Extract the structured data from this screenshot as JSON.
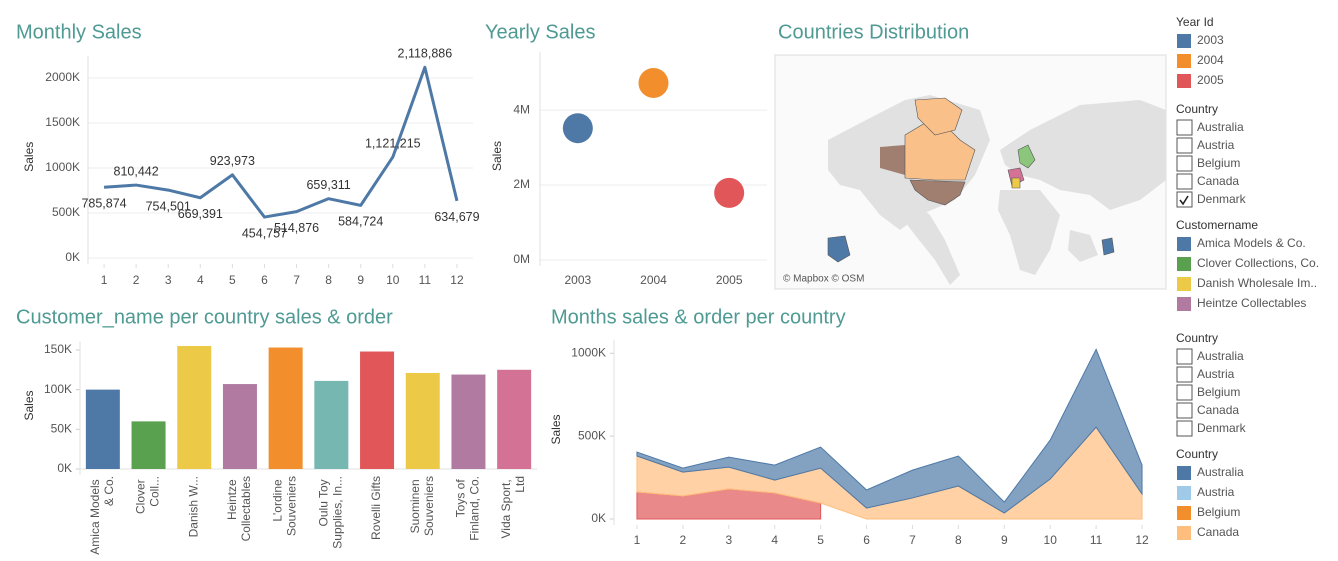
{
  "chart_data": [
    {
      "type": "line",
      "title": "Monthly Sales",
      "y_label": "Sales",
      "x": [
        1,
        2,
        3,
        4,
        5,
        6,
        7,
        8,
        9,
        10,
        11,
        12
      ],
      "values": [
        785874,
        810442,
        754501,
        669391,
        923973,
        454757,
        514876,
        659311,
        584724,
        1121215,
        2118886,
        634679
      ],
      "value_labels": [
        "785,874",
        "810,442",
        "754,501",
        "669,391",
        "923,973",
        "454,757",
        "514,876",
        "659,311",
        "584,724",
        "1,121,215",
        "2,118,886",
        "634,679"
      ],
      "color": "#4e79a7",
      "xlim": [
        0.5,
        12.5
      ],
      "xticks": [
        1,
        2,
        3,
        4,
        5,
        6,
        7,
        8,
        9,
        10,
        11,
        12
      ],
      "ylim": [
        0,
        2250000
      ],
      "yticks": [
        {
          "value": 0,
          "label": "0K"
        },
        {
          "value": 500000,
          "label": "500K"
        },
        {
          "value": 1000000,
          "label": "1000K"
        },
        {
          "value": 1500000,
          "label": "1500K"
        },
        {
          "value": 2000000,
          "label": "2000K"
        }
      ],
      "grid": true
    },
    {
      "type": "dot",
      "title": "Yearly Sales",
      "y_label": "Sales",
      "categories": [
        "2003",
        "2004",
        "2005"
      ],
      "values": [
        3516979,
        4724163,
        1791487
      ],
      "colors": [
        "#4e79a7",
        "#f28e2b",
        "#e15759"
      ],
      "ylim": [
        0,
        5550000
      ],
      "yticks": [
        {
          "value": 0,
          "label": "0M"
        },
        {
          "value": 2000000,
          "label": "2M"
        },
        {
          "value": 4000000,
          "label": "4M"
        }
      ],
      "grid": true
    },
    {
      "type": "map",
      "title": "Countries Distribution",
      "attribution": "© Mapbox © OSM"
    },
    {
      "type": "bar",
      "title": "Customer_name per country sales & order",
      "y_label": "Sales",
      "categories": [
        "Amica Models & Co.",
        "Clover Coll...",
        "Danish W...",
        "Heintze Collectables",
        "L'ordine Souveniers",
        "Oulu Toy Supplies, In...",
        "Rovelli Gifts",
        "Suominen Souveniers",
        "Toys of Finland, Co.",
        "Vida Sport, Ltd"
      ],
      "values": [
        100000,
        60000,
        155000,
        107000,
        153000,
        111000,
        148000,
        121000,
        119000,
        125000
      ],
      "colors": [
        "#4e79a7",
        "#59a14f",
        "#edc948",
        "#b07aa1",
        "#f28e2b",
        "#76b7b2",
        "#e15759",
        "#edc948",
        "#b07aa1",
        "#d37295"
      ],
      "ylim": [
        0,
        160000
      ],
      "yticks": [
        {
          "value": 0,
          "label": "0K"
        },
        {
          "value": 50000,
          "label": "50K"
        },
        {
          "value": 100000,
          "label": "100K"
        },
        {
          "value": 150000,
          "label": "150K"
        }
      ],
      "grid": false
    },
    {
      "type": "area",
      "title": "Months sales & order per country",
      "y_label": "Sales",
      "stacked": true,
      "x": [
        1,
        2,
        3,
        4,
        5,
        6,
        7,
        8,
        9,
        10,
        11,
        12
      ],
      "xlim": [
        0.5,
        12.5
      ],
      "xticks": [
        1,
        2,
        3,
        4,
        5,
        6,
        7,
        8,
        9,
        10,
        11,
        12
      ],
      "ylim": [
        0,
        1080000
      ],
      "yticks": [
        {
          "value": 0,
          "label": "0K"
        },
        {
          "value": 500000,
          "label": "500K"
        },
        {
          "value": 1000000,
          "label": "1000K"
        }
      ],
      "series": [
        {
          "color": "#e15759",
          "values": [
            163000,
            139000,
            181000,
            157000,
            96000,
            null,
            null,
            null,
            null,
            null,
            null,
            null
          ]
        },
        {
          "color": "#ffbe7d",
          "values": [
            217000,
            144000,
            132000,
            78000,
            211000,
            66000,
            127000,
            199000,
            36000,
            241000,
            554000,
            151000
          ]
        },
        {
          "color": "#4e79a7",
          "values": [
            24000,
            24000,
            60000,
            90000,
            127000,
            109000,
            168000,
            181000,
            66000,
            235000,
            470000,
            174000
          ]
        }
      ]
    }
  ],
  "filters": [
    {
      "title": "Year Id",
      "kind": "legend",
      "items": [
        {
          "label": "2003",
          "color": "#4e79a7"
        },
        {
          "label": "2004",
          "color": "#f28e2b"
        },
        {
          "label": "2005",
          "color": "#e15759"
        }
      ]
    },
    {
      "title": "Country",
      "kind": "checklist",
      "items": [
        {
          "label": "Australia",
          "checked": false
        },
        {
          "label": "Austria",
          "checked": false
        },
        {
          "label": "Belgium",
          "checked": false
        },
        {
          "label": "Canada",
          "checked": false
        },
        {
          "label": "Denmark",
          "checked": true
        }
      ]
    },
    {
      "title": "Customername",
      "kind": "legend",
      "items": [
        {
          "label": "Amica Models & Co.",
          "color": "#4e79a7"
        },
        {
          "label": "Clover Collections, Co.",
          "color": "#59a14f"
        },
        {
          "label": "Danish Wholesale Im..",
          "color": "#edc948"
        },
        {
          "label": "Heintze Collectables",
          "color": "#b07aa1"
        }
      ]
    },
    {
      "title": "Country",
      "kind": "checklist",
      "items": [
        {
          "label": "Australia",
          "checked": false
        },
        {
          "label": "Austria",
          "checked": false
        },
        {
          "label": "Belgium",
          "checked": false
        },
        {
          "label": "Canada",
          "checked": false
        },
        {
          "label": "Denmark",
          "checked": false
        }
      ]
    },
    {
      "title": "Country",
      "kind": "legend",
      "items": [
        {
          "label": "Australia",
          "color": "#4e79a7"
        },
        {
          "label": "Austria",
          "color": "#a0cbe8"
        },
        {
          "label": "Belgium",
          "color": "#f28e2b"
        },
        {
          "label": "Canada",
          "color": "#ffbe7d"
        }
      ]
    }
  ]
}
